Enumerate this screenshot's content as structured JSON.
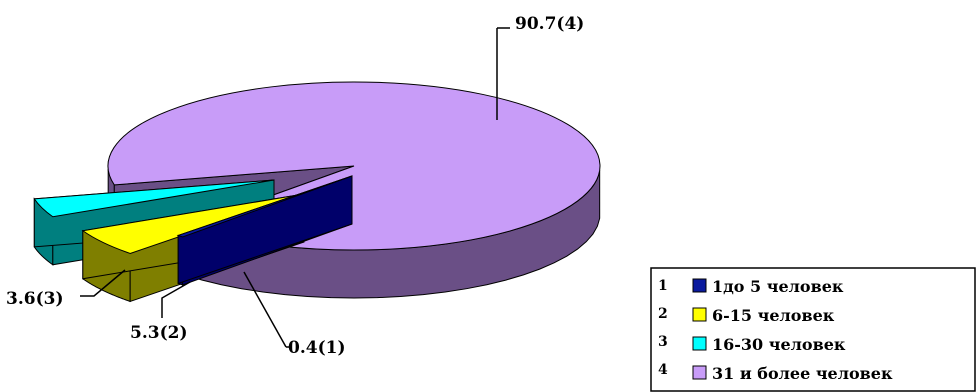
{
  "chart_data": {
    "type": "pie",
    "style": "3d-exploded",
    "title": "",
    "slices": [
      {
        "index": "1",
        "legend": "1до 5 человек",
        "value": 0.4,
        "data_label": "0.4(1)",
        "color": "#0a1a9e",
        "side_color": "#00006a"
      },
      {
        "index": "2",
        "legend": "6-15 человек",
        "value": 5.3,
        "data_label": "5.3(2)",
        "color": "#ffff00",
        "side_color": "#7f7f00"
      },
      {
        "index": "3",
        "legend": "16-30 человек",
        "value": 3.6,
        "data_label": "3.6(3)",
        "color": "#00ffff",
        "side_color": "#007f7f"
      },
      {
        "index": "4",
        "legend": "31 и более человек",
        "value": 90.7,
        "data_label": "90.7(4)",
        "color": "#c89cf8",
        "side_color": "#6a4f86"
      }
    ],
    "legend_position": "bottom-right"
  }
}
